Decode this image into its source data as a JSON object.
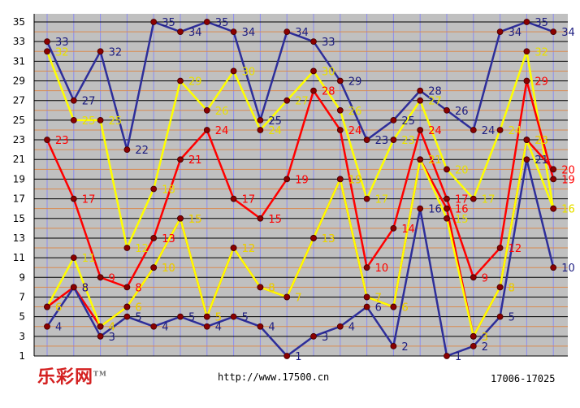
{
  "footer": {
    "logo": "乐彩网",
    "logo_mark": "TM",
    "url": "http://www.17500.cn",
    "range": "17006-17025"
  },
  "chart_data": {
    "type": "line",
    "y_ticks": [
      1,
      3,
      5,
      7,
      9,
      11,
      13,
      15,
      17,
      19,
      21,
      23,
      25,
      27,
      29,
      31,
      33,
      35
    ],
    "ylim": [
      1,
      35
    ],
    "grid": true,
    "x": [
      1,
      2,
      3,
      4,
      5,
      6,
      7,
      8,
      9,
      10,
      11,
      12,
      13,
      14,
      15,
      16,
      17,
      18,
      19,
      20
    ],
    "series": [
      {
        "color": "#2e2e9a",
        "values": [
          33,
          27,
          32,
          22,
          35,
          34,
          35,
          34,
          25,
          34,
          33,
          29,
          23,
          25,
          28,
          26,
          24,
          34,
          35,
          34
        ]
      },
      {
        "color": "#ffff00",
        "values": [
          32,
          25,
          25,
          12,
          18,
          29,
          26,
          30,
          24,
          27,
          30,
          26,
          17,
          23,
          27,
          20,
          17,
          24,
          32,
          16
        ]
      },
      {
        "color": "#ff0000",
        "values": [
          23,
          17,
          9,
          8,
          13,
          21,
          24,
          17,
          15,
          19,
          28,
          24,
          10,
          14,
          24,
          17,
          9,
          12,
          29,
          19
        ]
      },
      {
        "color": "#ff0000",
        "values": [
          6,
          8,
          4,
          6,
          10,
          15,
          5,
          12,
          8,
          7,
          13,
          19,
          7,
          6,
          21,
          16,
          3,
          8,
          23,
          20
        ]
      },
      {
        "color": "#ffff00",
        "values": [
          6,
          11,
          4,
          6,
          10,
          15,
          5,
          12,
          8,
          7,
          13,
          19,
          7,
          6,
          21,
          15,
          3,
          8,
          23,
          16
        ]
      },
      {
        "color": "#2e2e9a",
        "values": [
          4,
          8,
          3,
          5,
          4,
          5,
          4,
          5,
          4,
          1,
          3,
          4,
          6,
          2,
          16,
          1,
          2,
          5,
          21,
          10
        ]
      }
    ]
  }
}
